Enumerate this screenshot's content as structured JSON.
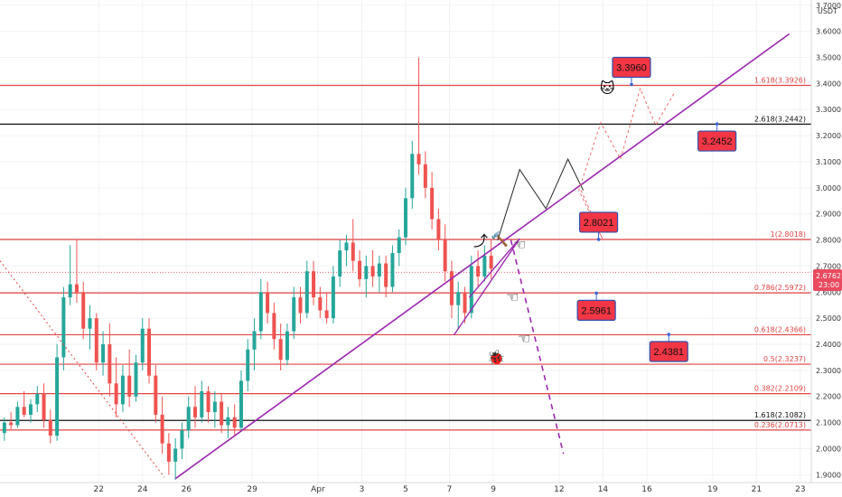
{
  "chart_data": {
    "type": "candlestick",
    "currency": "USDT",
    "ylim": [
      1.87,
      3.72
    ],
    "y_ticks": [
      "1.9000",
      "2.0000",
      "2.1000",
      "2.2000",
      "2.3000",
      "2.4000",
      "2.5000",
      "2.6000",
      "2.7000",
      "2.8000",
      "2.9000",
      "3.0000",
      "3.1000",
      "3.2000",
      "3.3000",
      "3.4000",
      "3.5000",
      "3.6000",
      "3.7000"
    ],
    "x_ticks": [
      {
        "label": "22",
        "day": 22
      },
      {
        "label": "24",
        "day": 24
      },
      {
        "label": "26",
        "day": 26
      },
      {
        "label": "29",
        "day": 29
      },
      {
        "label": "Apr",
        "day": 32
      },
      {
        "label": "3",
        "day": 34
      },
      {
        "label": "5",
        "day": 36
      },
      {
        "label": "7",
        "day": 38
      },
      {
        "label": "9",
        "day": 40
      },
      {
        "label": "12",
        "day": 43
      },
      {
        "label": "14",
        "day": 45
      },
      {
        "label": "16",
        "day": 47
      },
      {
        "label": "19",
        "day": 50
      },
      {
        "label": "21",
        "day": 52
      },
      {
        "label": "23",
        "day": 54
      }
    ],
    "xlim": [
      17.5,
      54.5
    ],
    "current_price": {
      "value": "2.6762",
      "countdown": "23:00",
      "price": 2.6762
    },
    "fib_levels": [
      {
        "label": "1.618(3.3926)",
        "price": 3.3926,
        "color": "#e04444"
      },
      {
        "label": "2.618(3.2442)",
        "price": 3.2442,
        "color": "#111111"
      },
      {
        "label": "1(2.8018)",
        "price": 2.8018,
        "color": "#e04444"
      },
      {
        "label": "0.786(2.5972)",
        "price": 2.5972,
        "color": "#e04444"
      },
      {
        "label": "0.618(2.4366)",
        "price": 2.4366,
        "color": "#e04444"
      },
      {
        "label": "0.5(2.3237)",
        "price": 2.3237,
        "color": "#e04444"
      },
      {
        "label": "0.382(2.2109)",
        "price": 2.2109,
        "color": "#e04444"
      },
      {
        "label": "1.618(2.1082)",
        "price": 2.1082,
        "color": "#111111"
      },
      {
        "label": "0.236(2.0713)",
        "price": 2.0713,
        "color": "#e04444"
      }
    ],
    "target_boxes": [
      {
        "label": "3.3960",
        "day": 46.3,
        "price": 3.396,
        "dir": "above"
      },
      {
        "label": "3.2452",
        "day": 50.2,
        "price": 3.2452,
        "dir": "below"
      },
      {
        "label": "2.8021",
        "day": 44.8,
        "price": 2.8021,
        "dir": "above"
      },
      {
        "label": "2.5961",
        "day": 44.7,
        "price": 2.5961,
        "dir": "below"
      },
      {
        "label": "2.4381",
        "day": 48.0,
        "price": 2.4381,
        "dir": "below"
      }
    ],
    "trendline": [
      [
        25.5,
        1.885
      ],
      [
        53.5,
        3.59
      ]
    ],
    "dotted_trend": [
      [
        17.5,
        2.72
      ],
      [
        25.0,
        1.89
      ]
    ],
    "wedge": [
      [
        38.2,
        2.435
      ],
      [
        41.2,
        2.805
      ],
      [
        38.9,
        2.58
      ]
    ],
    "bearish_path": [
      [
        40.8,
        2.8
      ],
      [
        43.2,
        1.98
      ]
    ],
    "zigzag_path": [
      [
        40.2,
        2.8
      ],
      [
        41.2,
        3.07
      ],
      [
        42.4,
        2.92
      ],
      [
        43.4,
        3.11
      ],
      [
        44.1,
        2.99
      ]
    ],
    "dashed_path": [
      [
        44.0,
        2.99
      ],
      [
        45.0,
        2.8
      ],
      [
        43.9,
        2.99
      ],
      [
        44.9,
        3.25
      ],
      [
        45.8,
        3.11
      ],
      [
        46.7,
        3.38
      ],
      [
        47.4,
        3.24
      ],
      [
        48.3,
        3.37
      ]
    ],
    "candles": [
      {
        "t": 17.7,
        "o": 2.06,
        "h": 2.12,
        "l": 2.03,
        "c": 2.1
      },
      {
        "t": 18.0,
        "o": 2.1,
        "h": 2.14,
        "l": 2.07,
        "c": 2.09
      },
      {
        "t": 18.3,
        "o": 2.09,
        "h": 2.18,
        "l": 2.08,
        "c": 2.16
      },
      {
        "t": 18.6,
        "o": 2.16,
        "h": 2.22,
        "l": 2.12,
        "c": 2.13
      },
      {
        "t": 18.9,
        "o": 2.13,
        "h": 2.19,
        "l": 2.1,
        "c": 2.17
      },
      {
        "t": 19.2,
        "o": 2.17,
        "h": 2.24,
        "l": 2.14,
        "c": 2.21
      },
      {
        "t": 19.5,
        "o": 2.21,
        "h": 2.25,
        "l": 2.08,
        "c": 2.11
      },
      {
        "t": 19.8,
        "o": 2.11,
        "h": 2.15,
        "l": 2.02,
        "c": 2.05
      },
      {
        "t": 20.1,
        "o": 2.05,
        "h": 2.4,
        "l": 2.03,
        "c": 2.35
      },
      {
        "t": 20.4,
        "o": 2.35,
        "h": 2.62,
        "l": 2.3,
        "c": 2.58
      },
      {
        "t": 20.7,
        "o": 2.58,
        "h": 2.78,
        "l": 2.55,
        "c": 2.63
      },
      {
        "t": 21.0,
        "o": 2.63,
        "h": 2.8,
        "l": 2.56,
        "c": 2.6
      },
      {
        "t": 21.3,
        "o": 2.6,
        "h": 2.64,
        "l": 2.42,
        "c": 2.46
      },
      {
        "t": 21.6,
        "o": 2.46,
        "h": 2.55,
        "l": 2.38,
        "c": 2.5
      },
      {
        "t": 21.9,
        "o": 2.5,
        "h": 2.52,
        "l": 2.3,
        "c": 2.33
      },
      {
        "t": 22.2,
        "o": 2.33,
        "h": 2.45,
        "l": 2.28,
        "c": 2.4
      },
      {
        "t": 22.5,
        "o": 2.4,
        "h": 2.48,
        "l": 2.2,
        "c": 2.25
      },
      {
        "t": 22.8,
        "o": 2.25,
        "h": 2.35,
        "l": 2.12,
        "c": 2.17
      },
      {
        "t": 23.1,
        "o": 2.17,
        "h": 2.32,
        "l": 2.14,
        "c": 2.28
      },
      {
        "t": 23.4,
        "o": 2.28,
        "h": 2.38,
        "l": 2.16,
        "c": 2.2
      },
      {
        "t": 23.7,
        "o": 2.2,
        "h": 2.36,
        "l": 2.18,
        "c": 2.33
      },
      {
        "t": 24.0,
        "o": 2.33,
        "h": 2.5,
        "l": 2.3,
        "c": 2.46
      },
      {
        "t": 24.3,
        "o": 2.46,
        "h": 2.5,
        "l": 2.25,
        "c": 2.28
      },
      {
        "t": 24.6,
        "o": 2.28,
        "h": 2.32,
        "l": 2.1,
        "c": 2.13
      },
      {
        "t": 24.9,
        "o": 2.13,
        "h": 2.2,
        "l": 1.98,
        "c": 2.02
      },
      {
        "t": 25.2,
        "o": 2.02,
        "h": 2.06,
        "l": 1.9,
        "c": 1.95
      },
      {
        "t": 25.5,
        "o": 1.95,
        "h": 2.04,
        "l": 1.88,
        "c": 2.0
      },
      {
        "t": 25.8,
        "o": 2.0,
        "h": 2.1,
        "l": 1.96,
        "c": 2.07
      },
      {
        "t": 26.1,
        "o": 2.07,
        "h": 2.2,
        "l": 2.04,
        "c": 2.16
      },
      {
        "t": 26.4,
        "o": 2.16,
        "h": 2.24,
        "l": 2.08,
        "c": 2.12
      },
      {
        "t": 26.7,
        "o": 2.12,
        "h": 2.26,
        "l": 2.1,
        "c": 2.22
      },
      {
        "t": 27.0,
        "o": 2.22,
        "h": 2.24,
        "l": 2.1,
        "c": 2.14
      },
      {
        "t": 27.3,
        "o": 2.14,
        "h": 2.22,
        "l": 2.08,
        "c": 2.18
      },
      {
        "t": 27.6,
        "o": 2.18,
        "h": 2.21,
        "l": 2.06,
        "c": 2.09
      },
      {
        "t": 27.9,
        "o": 2.09,
        "h": 2.16,
        "l": 2.04,
        "c": 2.12
      },
      {
        "t": 28.2,
        "o": 2.12,
        "h": 2.17,
        "l": 2.05,
        "c": 2.08
      },
      {
        "t": 28.5,
        "o": 2.08,
        "h": 2.3,
        "l": 2.07,
        "c": 2.26
      },
      {
        "t": 28.8,
        "o": 2.26,
        "h": 2.42,
        "l": 2.22,
        "c": 2.38
      },
      {
        "t": 29.1,
        "o": 2.38,
        "h": 2.5,
        "l": 2.3,
        "c": 2.45
      },
      {
        "t": 29.4,
        "o": 2.45,
        "h": 2.65,
        "l": 2.42,
        "c": 2.6
      },
      {
        "t": 29.7,
        "o": 2.6,
        "h": 2.64,
        "l": 2.48,
        "c": 2.52
      },
      {
        "t": 30.0,
        "o": 2.52,
        "h": 2.56,
        "l": 2.38,
        "c": 2.42
      },
      {
        "t": 30.3,
        "o": 2.42,
        "h": 2.48,
        "l": 2.3,
        "c": 2.34
      },
      {
        "t": 30.6,
        "o": 2.34,
        "h": 2.48,
        "l": 2.32,
        "c": 2.45
      },
      {
        "t": 30.9,
        "o": 2.45,
        "h": 2.62,
        "l": 2.42,
        "c": 2.58
      },
      {
        "t": 31.2,
        "o": 2.58,
        "h": 2.62,
        "l": 2.48,
        "c": 2.52
      },
      {
        "t": 31.5,
        "o": 2.52,
        "h": 2.72,
        "l": 2.5,
        "c": 2.68
      },
      {
        "t": 31.8,
        "o": 2.68,
        "h": 2.72,
        "l": 2.55,
        "c": 2.58
      },
      {
        "t": 32.1,
        "o": 2.58,
        "h": 2.62,
        "l": 2.5,
        "c": 2.53
      },
      {
        "t": 32.4,
        "o": 2.53,
        "h": 2.6,
        "l": 2.48,
        "c": 2.5
      },
      {
        "t": 32.7,
        "o": 2.5,
        "h": 2.7,
        "l": 2.48,
        "c": 2.66
      },
      {
        "t": 33.0,
        "o": 2.66,
        "h": 2.8,
        "l": 2.62,
        "c": 2.76
      },
      {
        "t": 33.3,
        "o": 2.76,
        "h": 2.82,
        "l": 2.7,
        "c": 2.79
      },
      {
        "t": 33.6,
        "o": 2.79,
        "h": 2.88,
        "l": 2.68,
        "c": 2.72
      },
      {
        "t": 33.9,
        "o": 2.72,
        "h": 2.76,
        "l": 2.62,
        "c": 2.65
      },
      {
        "t": 34.2,
        "o": 2.65,
        "h": 2.74,
        "l": 2.58,
        "c": 2.7
      },
      {
        "t": 34.5,
        "o": 2.7,
        "h": 2.76,
        "l": 2.62,
        "c": 2.66
      },
      {
        "t": 34.8,
        "o": 2.66,
        "h": 2.74,
        "l": 2.6,
        "c": 2.71
      },
      {
        "t": 35.1,
        "o": 2.71,
        "h": 2.74,
        "l": 2.58,
        "c": 2.62
      },
      {
        "t": 35.4,
        "o": 2.62,
        "h": 2.78,
        "l": 2.6,
        "c": 2.75
      },
      {
        "t": 35.7,
        "o": 2.75,
        "h": 2.84,
        "l": 2.7,
        "c": 2.81
      },
      {
        "t": 36.0,
        "o": 2.81,
        "h": 3.0,
        "l": 2.78,
        "c": 2.96
      },
      {
        "t": 36.3,
        "o": 2.96,
        "h": 3.18,
        "l": 2.92,
        "c": 3.13
      },
      {
        "t": 36.6,
        "o": 3.13,
        "h": 3.5,
        "l": 3.05,
        "c": 3.09
      },
      {
        "t": 36.9,
        "o": 3.09,
        "h": 3.14,
        "l": 2.96,
        "c": 3.0
      },
      {
        "t": 37.2,
        "o": 3.0,
        "h": 3.06,
        "l": 2.84,
        "c": 2.88
      },
      {
        "t": 37.5,
        "o": 2.88,
        "h": 2.92,
        "l": 2.76,
        "c": 2.8
      },
      {
        "t": 37.8,
        "o": 2.8,
        "h": 2.86,
        "l": 2.64,
        "c": 2.68
      },
      {
        "t": 38.1,
        "o": 2.68,
        "h": 2.72,
        "l": 2.5,
        "c": 2.55
      },
      {
        "t": 38.4,
        "o": 2.55,
        "h": 2.64,
        "l": 2.46,
        "c": 2.6
      },
      {
        "t": 38.7,
        "o": 2.6,
        "h": 2.62,
        "l": 2.48,
        "c": 2.52
      },
      {
        "t": 39.0,
        "o": 2.52,
        "h": 2.74,
        "l": 2.5,
        "c": 2.7
      },
      {
        "t": 39.3,
        "o": 2.7,
        "h": 2.76,
        "l": 2.62,
        "c": 2.66
      },
      {
        "t": 39.6,
        "o": 2.66,
        "h": 2.78,
        "l": 2.64,
        "c": 2.74
      },
      {
        "t": 39.9,
        "o": 2.74,
        "h": 2.8,
        "l": 2.65,
        "c": 2.69
      }
    ]
  }
}
